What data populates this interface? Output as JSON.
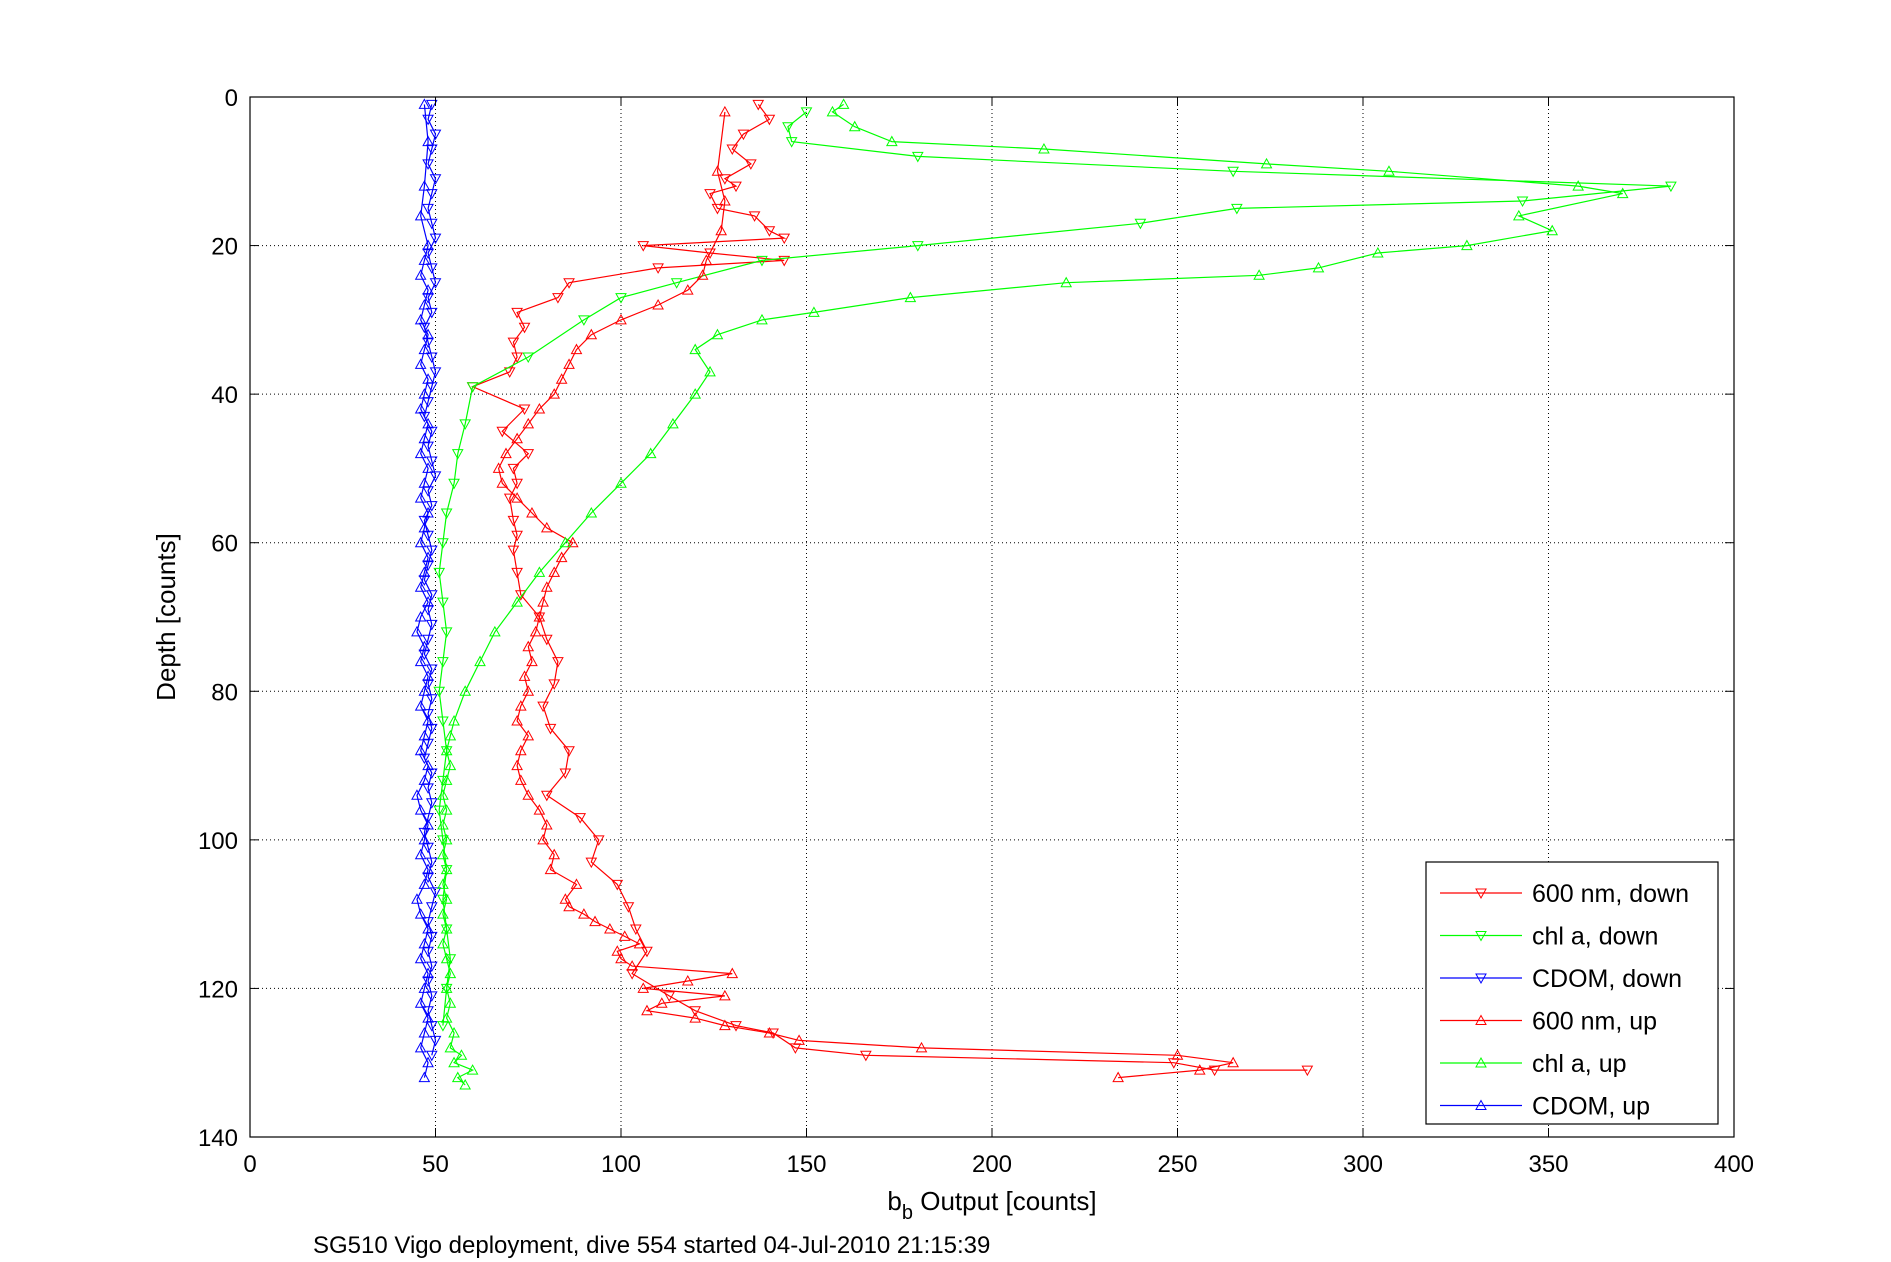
{
  "chart_data": {
    "type": "line",
    "title": "",
    "xlabel_main": "b",
    "xlabel_sub": "b",
    "xlabel_rest": " Output [counts]",
    "ylabel": "Depth [counts]",
    "caption": "SG510 Vigo deployment, dive 554 started 04-Jul-2010 21:15:39",
    "xlim": [
      0,
      400
    ],
    "ylim": [
      0,
      140
    ],
    "y_reversed": true,
    "grid": true,
    "legend_position": "bottom-right",
    "xticks": [
      "0",
      "50",
      "100",
      "150",
      "200",
      "250",
      "300",
      "350",
      "400"
    ],
    "yticks": [
      "0",
      "20",
      "40",
      "60",
      "80",
      "100",
      "120",
      "140"
    ],
    "series": [
      {
        "name": "600 nm, down",
        "color": "#ff0000",
        "marker": "triangle-down",
        "x": [
          137,
          140,
          133,
          130,
          135,
          128,
          131,
          124,
          126,
          136,
          140,
          144,
          106,
          124,
          144,
          110,
          86,
          83,
          72,
          74,
          71,
          72,
          70,
          60,
          74,
          68,
          75,
          71,
          72,
          70,
          71,
          72,
          71,
          72,
          73,
          78,
          80,
          83,
          82,
          79,
          81,
          86,
          85,
          80,
          89,
          94,
          92,
          99,
          102,
          104,
          107,
          103,
          113,
          120,
          131,
          141,
          147,
          166,
          249,
          260,
          285
        ],
        "y": [
          1,
          3,
          5,
          7,
          9,
          11,
          12,
          13,
          15,
          16,
          18,
          19,
          20,
          21,
          22,
          23,
          25,
          27,
          29,
          31,
          33,
          35,
          37,
          39,
          42,
          45,
          48,
          50,
          52,
          54,
          57,
          59,
          61,
          64,
          67,
          70,
          73,
          76,
          79,
          82,
          85,
          88,
          91,
          94,
          97,
          100,
          103,
          106,
          109,
          112,
          115,
          118,
          121,
          123,
          125,
          126,
          128,
          129,
          130,
          131,
          131
        ]
      },
      {
        "name": "chl a, down",
        "color": "#00ff00",
        "marker": "triangle-down",
        "x": [
          150,
          145,
          146,
          180,
          265,
          383,
          343,
          266,
          240,
          180,
          138,
          115,
          100,
          90,
          75,
          60,
          58,
          56,
          55,
          53,
          52,
          51,
          52,
          53,
          52,
          51,
          52,
          53,
          52,
          51,
          52,
          53,
          52,
          53,
          54,
          53,
          52
        ],
        "y": [
          2,
          4,
          6,
          8,
          10,
          12,
          14,
          15,
          17,
          20,
          22,
          25,
          27,
          30,
          35,
          39,
          44,
          48,
          52,
          56,
          60,
          64,
          68,
          72,
          76,
          80,
          84,
          88,
          92,
          96,
          100,
          104,
          108,
          112,
          116,
          120,
          125
        ]
      },
      {
        "name": "CDOM, down",
        "color": "#0000ff",
        "marker": "triangle-down",
        "x": [
          49,
          48,
          50,
          49,
          48,
          50,
          49,
          48,
          49,
          50,
          48,
          49,
          50,
          48,
          49,
          47,
          48,
          49,
          50,
          49,
          48,
          47,
          49,
          48,
          49,
          50,
          48,
          49,
          47,
          48,
          49,
          48,
          47,
          49,
          48,
          49,
          48,
          47,
          49,
          48,
          49,
          48,
          49,
          48,
          47,
          49,
          48,
          49,
          48,
          47,
          48,
          49,
          48,
          50,
          49,
          48,
          49,
          48,
          49,
          48,
          49,
          48,
          49,
          50,
          49
        ],
        "y": [
          1,
          3,
          5,
          7,
          9,
          11,
          13,
          15,
          17,
          19,
          21,
          23,
          25,
          27,
          29,
          31,
          33,
          35,
          37,
          39,
          41,
          43,
          45,
          47,
          49,
          51,
          53,
          55,
          57,
          59,
          61,
          63,
          65,
          67,
          69,
          71,
          73,
          75,
          77,
          79,
          81,
          83,
          85,
          87,
          89,
          91,
          93,
          95,
          97,
          99,
          101,
          103,
          105,
          107,
          109,
          111,
          113,
          115,
          117,
          119,
          121,
          123,
          125,
          127,
          129
        ]
      },
      {
        "name": "600 nm, up",
        "color": "#ff0000",
        "marker": "triangle-up",
        "x": [
          234,
          256,
          265,
          250,
          181,
          148,
          140,
          128,
          120,
          107,
          111,
          128,
          106,
          118,
          130,
          103,
          100,
          99,
          105,
          101,
          97,
          93,
          90,
          86,
          85,
          88,
          81,
          82,
          79,
          80,
          78,
          75,
          73,
          72,
          73,
          75,
          72,
          73,
          75,
          74,
          76,
          75,
          77,
          78,
          79,
          80,
          82,
          84,
          87,
          80,
          76,
          72,
          68,
          67,
          69,
          72,
          75,
          78,
          82,
          84,
          86,
          88,
          92,
          100,
          110,
          118,
          122,
          123,
          127,
          128,
          126,
          128
        ],
        "y": [
          132,
          131,
          130,
          129,
          128,
          127,
          126,
          125,
          124,
          123,
          122,
          121,
          120,
          119,
          118,
          117,
          116,
          115,
          114,
          113,
          112,
          111,
          110,
          109,
          108,
          106,
          104,
          102,
          100,
          98,
          96,
          94,
          92,
          90,
          88,
          86,
          84,
          82,
          80,
          78,
          76,
          74,
          72,
          70,
          68,
          66,
          64,
          62,
          60,
          58,
          56,
          54,
          52,
          50,
          48,
          46,
          44,
          42,
          40,
          38,
          36,
          34,
          32,
          30,
          28,
          26,
          24,
          22,
          18,
          14,
          10,
          2
        ]
      },
      {
        "name": "chl a, up",
        "color": "#00ff00",
        "marker": "triangle-up",
        "x": [
          58,
          56,
          60,
          55,
          57,
          54,
          55,
          53,
          54,
          53,
          54,
          53,
          52,
          53,
          52,
          53,
          52,
          53,
          52,
          53,
          52,
          53,
          52,
          53,
          54,
          53,
          54,
          55,
          58,
          62,
          66,
          72,
          78,
          85,
          92,
          100,
          108,
          114,
          120,
          124,
          120,
          126,
          138,
          152,
          178,
          220,
          272,
          288,
          304,
          328,
          351,
          342,
          370,
          358,
          307,
          274,
          214,
          173,
          163,
          157,
          160
        ],
        "y": [
          133,
          132,
          131,
          130,
          129,
          128,
          126,
          124,
          122,
          120,
          118,
          116,
          114,
          112,
          110,
          108,
          106,
          104,
          102,
          100,
          98,
          96,
          94,
          92,
          90,
          88,
          86,
          84,
          80,
          76,
          72,
          68,
          64,
          60,
          56,
          52,
          48,
          44,
          40,
          37,
          34,
          32,
          30,
          29,
          27,
          25,
          24,
          23,
          21,
          20,
          18,
          16,
          13,
          12,
          10,
          9,
          7,
          6,
          4,
          2,
          1
        ]
      },
      {
        "name": "CDOM, up",
        "color": "#0000ff",
        "marker": "triangle-up",
        "x": [
          47,
          48,
          46,
          47,
          48,
          46,
          47,
          48,
          46,
          47,
          48,
          46,
          45,
          47,
          48,
          46,
          47,
          48,
          46,
          45,
          47,
          48,
          46,
          47,
          48,
          46,
          47,
          48,
          46,
          47,
          45,
          46,
          48,
          46,
          47,
          48,
          46,
          47,
          48,
          46,
          47,
          48,
          46,
          47,
          48,
          46,
          47,
          48,
          46,
          47,
          48,
          46,
          47,
          48,
          46,
          47,
          48,
          46,
          47,
          48,
          47
        ],
        "y": [
          132,
          130,
          128,
          126,
          124,
          122,
          120,
          118,
          116,
          114,
          112,
          110,
          108,
          106,
          104,
          102,
          100,
          98,
          96,
          94,
          92,
          90,
          88,
          86,
          84,
          82,
          80,
          78,
          76,
          74,
          72,
          70,
          68,
          66,
          64,
          62,
          60,
          58,
          56,
          54,
          52,
          50,
          48,
          46,
          44,
          42,
          40,
          38,
          36,
          34,
          32,
          30,
          28,
          26,
          24,
          22,
          20,
          16,
          12,
          6,
          1
        ]
      }
    ]
  }
}
